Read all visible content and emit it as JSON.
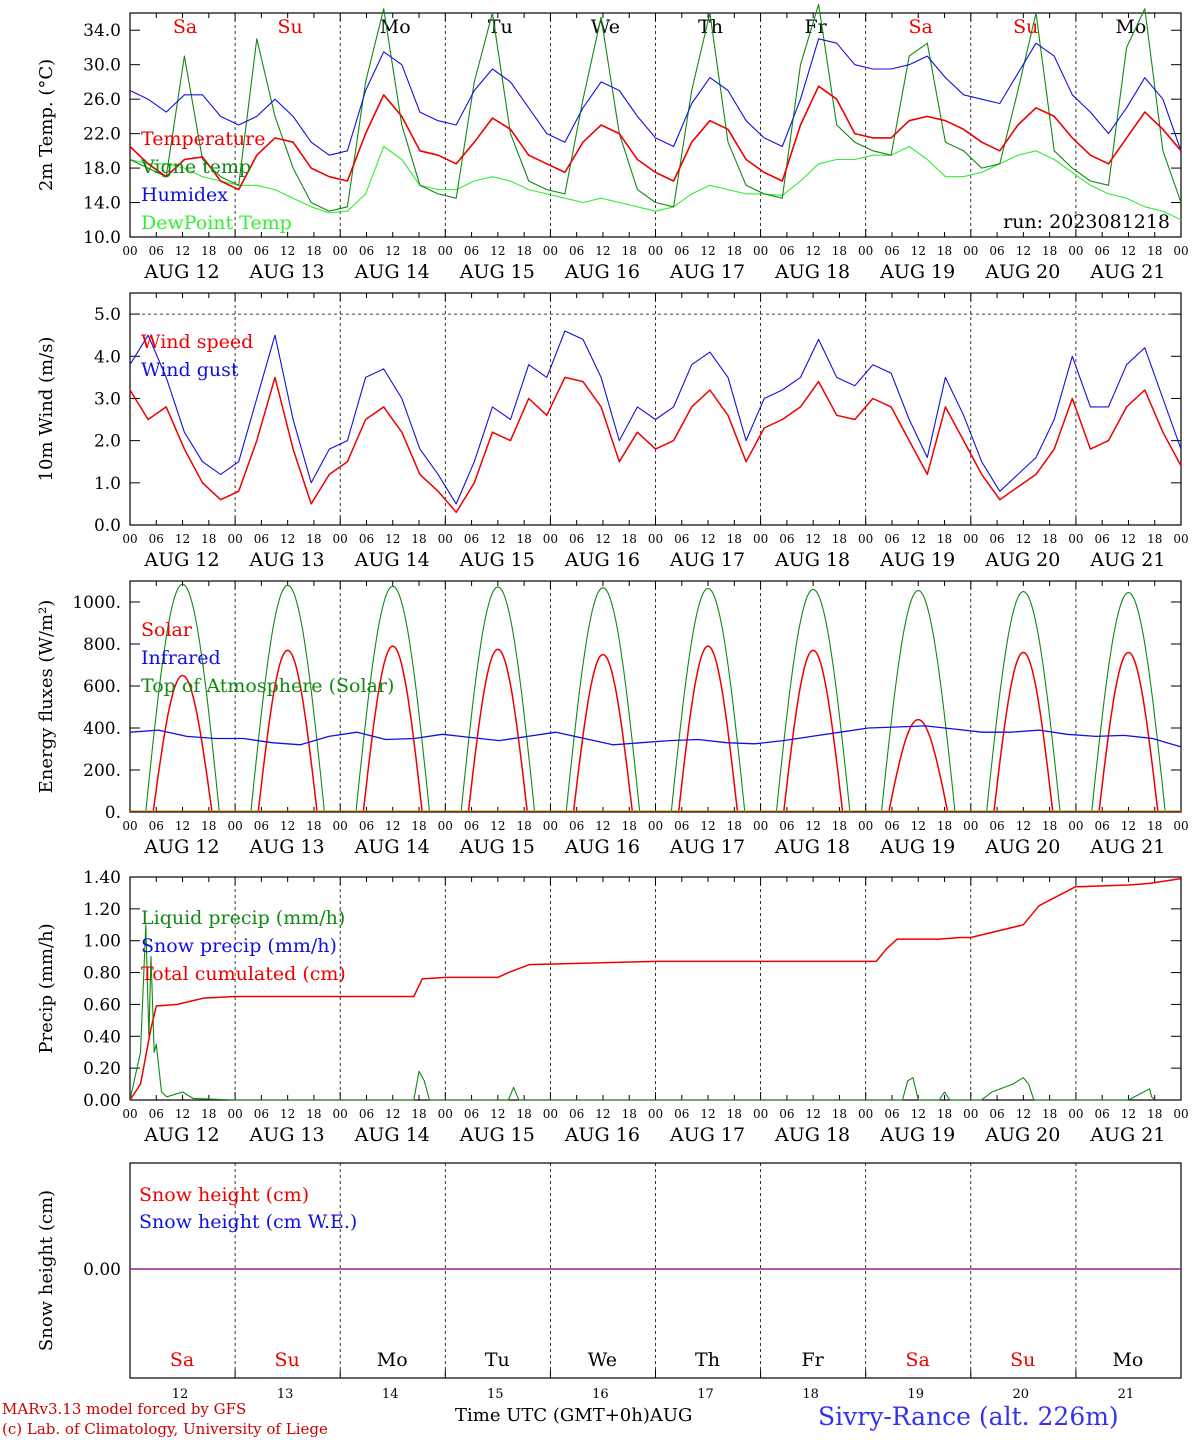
{
  "footer": {
    "model_line": "MARv3.13 model forced by GFS",
    "lab_line": "(c) Lab. of Climatology, University of Liege",
    "time_axis_label": "Time UTC (GMT+0h)",
    "month_label": "AUG",
    "station": "Sivry-Rance (alt. 226m)"
  },
  "colors": {
    "red": "#ee0000",
    "dark_green": "#118811",
    "blue": "#1111dd",
    "light_green": "#33ee33",
    "purple": "#8833aa"
  },
  "chart_data": [
    {
      "type": "line",
      "ylabel": "2m Temp. (°C)",
      "ylim": [
        10,
        36
      ],
      "yticks": [
        "10.0",
        "14.0",
        "18.0",
        "22.0",
        "26.0",
        "30.0",
        "34.0"
      ],
      "hour_ticks": [
        "00",
        "06",
        "12",
        "18"
      ],
      "date_labels": [
        "AUG 12",
        "AUG 13",
        "AUG 14",
        "AUG 15",
        "AUG 16",
        "AUG 17",
        "AUG 18",
        "AUG 19",
        "AUG 20",
        "AUG 21"
      ],
      "weekdays": [
        "Sa",
        "Su",
        "Mo",
        "Tu",
        "We",
        "Th",
        "Fr",
        "Sa",
        "Su",
        "Mo"
      ],
      "weekend_flags": [
        true,
        true,
        false,
        false,
        false,
        false,
        false,
        true,
        true,
        false
      ],
      "run_label": "run: 2023081218",
      "series": [
        {
          "name": "Temperature",
          "color": "#ee0000",
          "values": [
            20.5,
            18.5,
            17.0,
            19.0,
            19.3,
            16.5,
            15.5,
            19.5,
            21.5,
            21.0,
            18.0,
            17.0,
            16.5,
            22.0,
            26.5,
            24.0,
            20.0,
            19.5,
            18.5,
            21.0,
            23.8,
            22.5,
            19.5,
            18.5,
            17.5,
            21.0,
            23.0,
            22.0,
            19.0,
            17.5,
            16.5,
            21.0,
            23.5,
            22.5,
            19.0,
            17.5,
            16.5,
            23.0,
            27.5,
            26.0,
            22.0,
            21.5,
            21.5,
            23.5,
            24.0,
            23.5,
            22.5,
            21.0,
            20.0,
            23.0,
            25.0,
            24.0,
            21.5,
            19.5,
            18.5,
            21.5,
            24.5,
            22.5,
            20.0
          ]
        },
        {
          "name": "Vigne temp",
          "color": "#118811",
          "values": [
            19.0,
            18.0,
            17.0,
            31.0,
            19.0,
            17.0,
            16.0,
            33.0,
            24.0,
            18.0,
            14.0,
            13.0,
            13.5,
            28.0,
            36.5,
            23.0,
            16.0,
            15.0,
            14.5,
            28.0,
            36.0,
            22.0,
            16.5,
            15.5,
            15.0,
            26.0,
            35.5,
            22.0,
            15.5,
            14.0,
            13.5,
            27.0,
            36.0,
            21.0,
            16.0,
            15.0,
            14.5,
            30.0,
            37.0,
            23.0,
            21.0,
            20.0,
            19.5,
            31.0,
            32.5,
            21.0,
            20.0,
            18.0,
            18.5,
            27.0,
            36.0,
            20.0,
            18.0,
            16.5,
            16.0,
            32.0,
            36.5,
            20.0,
            14.0
          ]
        },
        {
          "name": "Humidex",
          "color": "#1111dd",
          "values": [
            27.0,
            26.0,
            24.5,
            26.5,
            26.5,
            24.0,
            23.0,
            24.0,
            26.0,
            24.0,
            21.0,
            19.5,
            20.0,
            27.0,
            31.5,
            30.0,
            24.5,
            23.5,
            23.0,
            27.0,
            29.5,
            28.0,
            25.0,
            22.0,
            21.0,
            25.0,
            28.0,
            27.0,
            24.0,
            21.5,
            20.5,
            25.5,
            28.5,
            27.0,
            23.5,
            21.5,
            20.5,
            26.0,
            33.0,
            32.5,
            30.0,
            29.5,
            29.5,
            30.0,
            31.0,
            28.5,
            26.5,
            26.0,
            25.5,
            29.0,
            32.5,
            31.0,
            26.5,
            24.5,
            22.0,
            25.0,
            28.5,
            26.0,
            20.0
          ]
        },
        {
          "name": "DewPoint Temp",
          "color": "#33ee33",
          "values": [
            19.0,
            18.5,
            18.5,
            18.0,
            17.0,
            16.5,
            16.0,
            16.0,
            15.5,
            14.5,
            13.5,
            12.8,
            13.0,
            15.0,
            20.5,
            19.0,
            16.0,
            15.5,
            15.5,
            16.5,
            17.0,
            16.5,
            15.5,
            15.0,
            14.5,
            14.0,
            14.5,
            14.0,
            13.5,
            13.0,
            13.5,
            15.0,
            16.0,
            15.5,
            15.0,
            15.0,
            14.8,
            16.5,
            18.5,
            19.0,
            19.0,
            19.5,
            19.5,
            20.5,
            19.0,
            17.0,
            17.0,
            17.5,
            18.5,
            19.5,
            20.0,
            19.0,
            17.5,
            16.0,
            15.0,
            14.5,
            13.5,
            13.0,
            12.0
          ]
        }
      ]
    },
    {
      "type": "line",
      "ylabel": "10m Wind (m/s)",
      "ylim": [
        0,
        5.5
      ],
      "yticks": [
        "0.0",
        "1.0",
        "2.0",
        "3.0",
        "4.0",
        "5.0"
      ],
      "hour_ticks": [
        "00",
        "06",
        "12",
        "18"
      ],
      "date_labels": [
        "AUG 12",
        "AUG 13",
        "AUG 14",
        "AUG 15",
        "AUG 16",
        "AUG 17",
        "AUG 18",
        "AUG 19",
        "AUG 20",
        "AUG 21"
      ],
      "series": [
        {
          "name": "Wind speed",
          "color": "#ee0000",
          "values": [
            3.2,
            2.5,
            2.8,
            1.8,
            1.0,
            0.6,
            0.8,
            2.0,
            3.5,
            1.8,
            0.5,
            1.2,
            1.5,
            2.5,
            2.8,
            2.2,
            1.2,
            0.8,
            0.3,
            1.0,
            2.2,
            2.0,
            3.0,
            2.6,
            3.5,
            3.4,
            2.8,
            1.5,
            2.2,
            1.8,
            2.0,
            2.8,
            3.2,
            2.6,
            1.5,
            2.3,
            2.5,
            2.8,
            3.4,
            2.6,
            2.5,
            3.0,
            2.8,
            2.0,
            1.2,
            2.8,
            2.0,
            1.2,
            0.6,
            0.9,
            1.2,
            1.8,
            3.0,
            1.8,
            2.0,
            2.8,
            3.2,
            2.2,
            1.4
          ]
        },
        {
          "name": "Wind gust",
          "color": "#1111dd",
          "values": [
            3.8,
            4.5,
            3.5,
            2.2,
            1.5,
            1.2,
            1.5,
            3.0,
            4.5,
            2.5,
            1.0,
            1.8,
            2.0,
            3.5,
            3.7,
            3.0,
            1.8,
            1.2,
            0.5,
            1.5,
            2.8,
            2.5,
            3.8,
            3.5,
            4.6,
            4.4,
            3.5,
            2.0,
            2.8,
            2.5,
            2.8,
            3.8,
            4.1,
            3.5,
            2.0,
            3.0,
            3.2,
            3.5,
            4.4,
            3.5,
            3.3,
            3.8,
            3.6,
            2.5,
            1.6,
            3.5,
            2.6,
            1.5,
            0.8,
            1.2,
            1.6,
            2.5,
            4.0,
            2.8,
            2.8,
            3.8,
            4.2,
            3.0,
            1.8
          ]
        }
      ]
    },
    {
      "type": "line",
      "ylabel": "Energy fluxes (W/m²)",
      "ylim": [
        0,
        1100
      ],
      "yticks": [
        "0.",
        "200.",
        "400.",
        "600.",
        "800.",
        "1000."
      ],
      "hour_ticks": [
        "00",
        "06",
        "12",
        "18"
      ],
      "date_labels": [
        "AUG 12",
        "AUG 13",
        "AUG 14",
        "AUG 15",
        "AUG 16",
        "AUG 17",
        "AUG 18",
        "AUG 19",
        "AUG 20",
        "AUG 21"
      ],
      "solar_peaks": [
        650,
        770,
        790,
        775,
        750,
        790,
        770,
        440,
        760,
        760
      ],
      "toa_peaks": [
        1085,
        1080,
        1075,
        1072,
        1068,
        1065,
        1060,
        1055,
        1050,
        1045
      ],
      "series": [
        {
          "name": "Solar",
          "color": "#ee0000"
        },
        {
          "name": "Infrared",
          "color": "#1111dd",
          "values": [
            380,
            390,
            360,
            350,
            350,
            330,
            320,
            360,
            380,
            345,
            350,
            370,
            355,
            340,
            360,
            380,
            350,
            320,
            330,
            340,
            345,
            330,
            325,
            340,
            360,
            380,
            400,
            405,
            410,
            395,
            380,
            380,
            390,
            370,
            360,
            365,
            350,
            310
          ]
        },
        {
          "name": "Top of Atmosphere (Solar)",
          "color": "#118811"
        }
      ]
    },
    {
      "type": "line",
      "ylabel": "Precip (mm/h)",
      "ylim": [
        0,
        1.4
      ],
      "yticks": [
        "0.00",
        "0.20",
        "0.40",
        "0.60",
        "0.80",
        "1.00",
        "1.20",
        "1.40"
      ],
      "hour_ticks": [
        "00",
        "06",
        "12",
        "18"
      ],
      "date_labels": [
        "AUG 12",
        "AUG 13",
        "AUG 14",
        "AUG 15",
        "AUG 16",
        "AUG 17",
        "AUG 18",
        "AUG 19",
        "AUG 20",
        "AUG 21"
      ],
      "series": [
        {
          "name": "Liquid precip (mm/h)",
          "color": "#118811",
          "x": [
            0.0,
            0.1,
            0.15,
            0.18,
            0.2,
            0.23,
            0.25,
            0.3,
            0.35,
            0.5,
            0.6,
            1.0,
            2.7,
            2.75,
            2.8,
            2.85,
            3.6,
            3.65,
            3.7,
            7.35,
            7.4,
            7.45,
            7.5,
            7.7,
            7.75,
            7.8,
            8.1,
            8.2,
            8.4,
            8.5,
            8.55,
            8.6,
            9.0,
            9.5,
            9.7,
            9.72,
            9.75
          ],
          "values": [
            0,
            0.3,
            1.1,
            0.4,
            0.9,
            0.3,
            0.35,
            0.05,
            0.02,
            0.05,
            0.01,
            0,
            0,
            0.18,
            0.12,
            0,
            0,
            0.08,
            0,
            0,
            0.12,
            0.14,
            0,
            0,
            0.05,
            0,
            0,
            0.05,
            0.1,
            0.14,
            0.1,
            0,
            0,
            0,
            0.07,
            0.02,
            0
          ]
        },
        {
          "name": "Snow precip (mm/h)",
          "color": "#1111dd",
          "values": [
            0
          ]
        },
        {
          "name": "Total cumulated (cm)",
          "color": "#ee0000",
          "x": [
            0.0,
            0.1,
            0.2,
            0.25,
            0.45,
            0.7,
            1.0,
            2.7,
            2.78,
            3.0,
            3.5,
            3.6,
            3.8,
            5.0,
            6.0,
            7.0,
            7.1,
            7.2,
            7.3,
            7.7,
            7.9,
            8.0,
            8.5,
            8.65,
            9.0,
            9.05,
            9.5,
            9.7,
            10.0
          ],
          "values": [
            0.0,
            0.1,
            0.45,
            0.59,
            0.6,
            0.64,
            0.65,
            0.65,
            0.76,
            0.77,
            0.77,
            0.8,
            0.85,
            0.87,
            0.87,
            0.87,
            0.87,
            0.95,
            1.01,
            1.01,
            1.02,
            1.02,
            1.1,
            1.22,
            1.34,
            1.34,
            1.35,
            1.36,
            1.39
          ]
        }
      ]
    },
    {
      "type": "line",
      "ylabel": "Snow height (cm)",
      "ytick": "0.00",
      "weekdays": [
        "Sa",
        "Su",
        "Mo",
        "Tu",
        "We",
        "Th",
        "Fr",
        "Sa",
        "Su",
        "Mo"
      ],
      "weekend_flags": [
        true,
        true,
        false,
        false,
        false,
        false,
        false,
        true,
        true,
        false
      ],
      "day_numbers": [
        "12",
        "13",
        "14",
        "15",
        "16",
        "17",
        "18",
        "19",
        "20",
        "21"
      ],
      "series": [
        {
          "name": "Snow height (cm)",
          "color": "#ee0000",
          "values": [
            0,
            0
          ]
        },
        {
          "name": "Snow height (cm W.E.)",
          "color": "#1111dd",
          "values": [
            0,
            0
          ]
        }
      ]
    }
  ]
}
